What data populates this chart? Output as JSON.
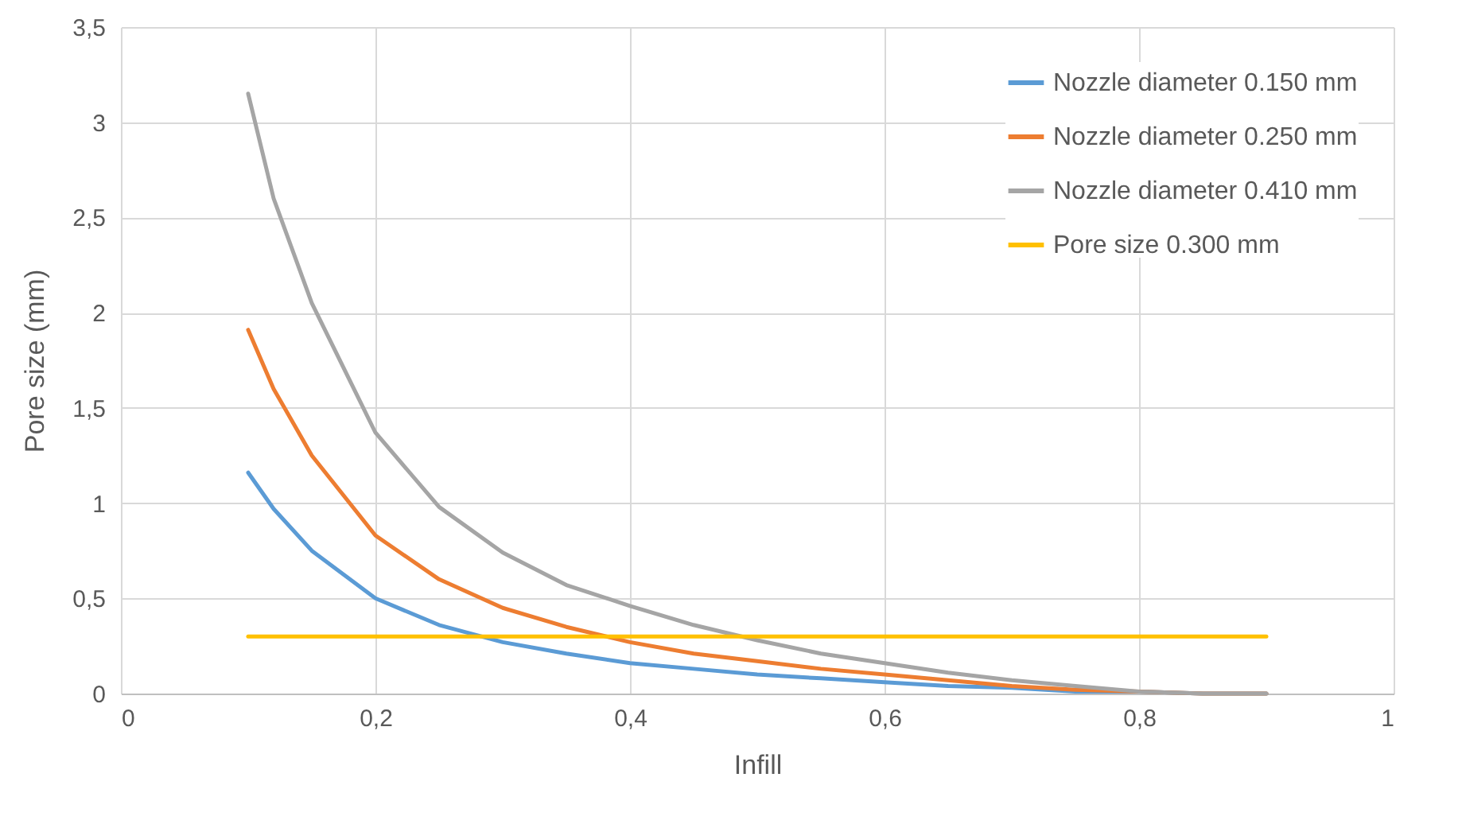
{
  "chart_data": {
    "type": "line",
    "xlabel": "Infill",
    "ylabel": "Pore size (mm)",
    "xlim": [
      0,
      1
    ],
    "xticks": [
      0,
      {
        "value": 0.2,
        "label": "0,2"
      },
      {
        "value": 0.4,
        "label": "0,4"
      },
      {
        "value": 0.6,
        "label": "0,6"
      },
      {
        "value": 0.8,
        "label": "0,8"
      },
      1
    ],
    "ylim": [
      0,
      3.5
    ],
    "yticks": [
      0,
      {
        "value": 0.5,
        "label": "0,5"
      },
      1,
      {
        "value": 1.5,
        "label": "1,5"
      },
      2,
      {
        "value": 2.5,
        "label": "2,5"
      },
      3,
      {
        "value": 3.5,
        "label": "3,5"
      }
    ],
    "grid": true,
    "legend": "top right",
    "marker": "none",
    "line_style": "solid",
    "x": [
      0.1,
      0.12,
      0.15,
      0.2,
      0.25,
      0.3,
      0.35,
      0.4,
      0.45,
      0.5,
      0.55,
      0.6,
      0.65,
      0.7,
      0.75,
      0.8,
      0.85,
      0.9
    ],
    "series": [
      {
        "name": "Nozzle diameter 0.150 mm",
        "color": "#5b9bd5",
        "values": [
          1.16,
          0.97,
          0.75,
          0.5,
          0.36,
          0.27,
          0.21,
          0.16,
          0.13,
          0.1,
          0.08,
          0.06,
          0.04,
          0.03,
          0.01,
          0.01,
          0,
          0
        ]
      },
      {
        "name": "Nozzle diameter 0.250 mm",
        "color": "#ed7d31",
        "values": [
          1.91,
          1.6,
          1.25,
          0.83,
          0.6,
          0.45,
          0.35,
          0.27,
          0.21,
          0.17,
          0.13,
          0.1,
          0.07,
          0.04,
          0.02,
          0.01,
          0,
          0
        ]
      },
      {
        "name": "Nozzle diameter 0.410 mm",
        "color": "#a5a5a5",
        "values": [
          3.15,
          2.6,
          2.05,
          1.37,
          0.98,
          0.74,
          0.57,
          0.46,
          0.36,
          0.28,
          0.21,
          0.16,
          0.11,
          0.07,
          0.04,
          0.01,
          0,
          0
        ]
      },
      {
        "name": "Pore size 0.300 mm",
        "color": "#ffc000",
        "x": [
          0.1,
          0.9
        ],
        "values": [
          0.3,
          0.3
        ]
      }
    ]
  }
}
